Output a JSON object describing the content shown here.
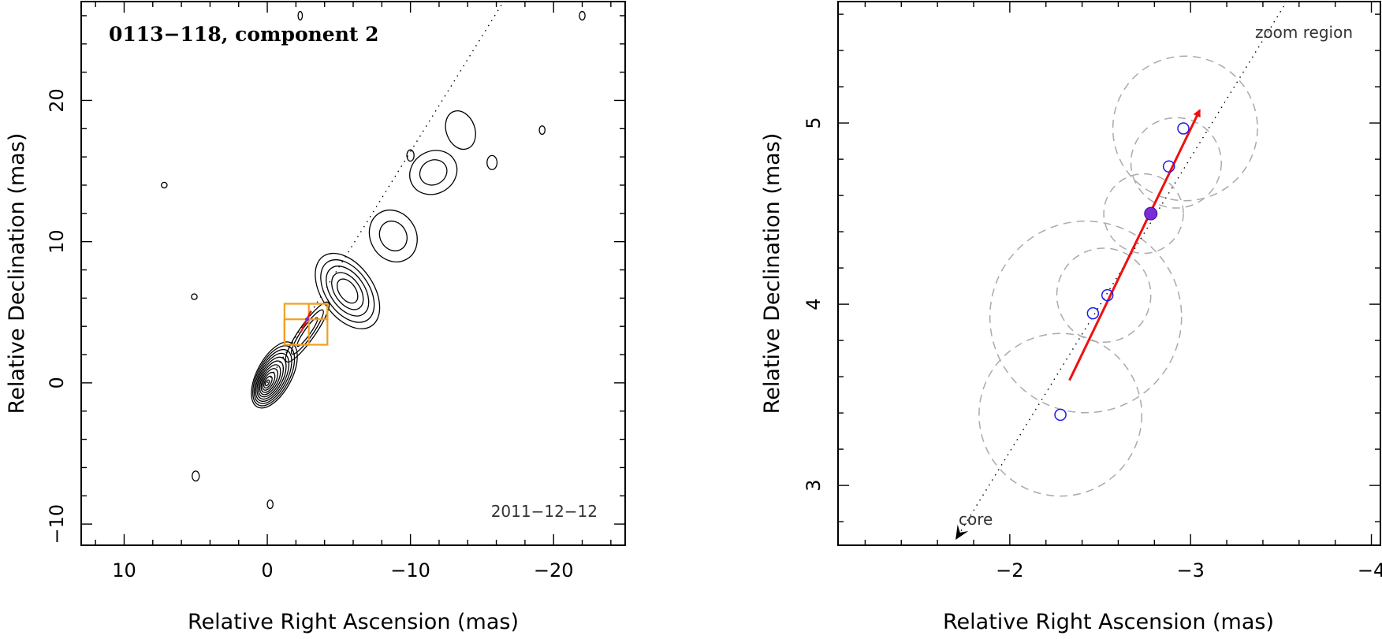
{
  "chart_data": [
    {
      "type": "contour",
      "title": "0113−118, component 2",
      "epoch": "2011−12−12",
      "xlabel": "Relative Right Ascension (mas)",
      "ylabel": "Relative Declination (mas)",
      "xlim": [
        13,
        -25
      ],
      "ylim": [
        -11.5,
        27
      ],
      "xticks": [
        10,
        0,
        -10,
        -20
      ],
      "xtick_labels": [
        "10",
        "0",
        "−10",
        "−20"
      ],
      "yticks": [
        -10,
        0,
        10,
        20
      ],
      "ytick_labels": [
        "−10",
        "0",
        "10",
        "20"
      ],
      "jet_axis": [
        [
          0,
          0
        ],
        [
          -16.5,
          27
        ]
      ],
      "core": {
        "x": 0,
        "y": 0,
        "levels": 11
      },
      "zoom_boxes": [
        {
          "x": [
            -1.2,
            -4.2
          ],
          "y": [
            2.7,
            5.6
          ]
        },
        {
          "x": [
            -1.2,
            -2.9
          ],
          "y": [
            2.7,
            4.5
          ]
        },
        {
          "x": [
            -2.9,
            -4.2
          ],
          "y": [
            4.5,
            5.6
          ]
        }
      ],
      "component_motion": {
        "from": [
          -2.35,
          3.6
        ],
        "to": [
          -3.05,
          5.1
        ]
      },
      "blobs": [
        {
          "x": -5.6,
          "y": 6.5,
          "rx": 1.8,
          "ry": 3.0,
          "rot": -35,
          "levels": 5
        },
        {
          "x": -8.8,
          "y": 10.4,
          "rx": 1.6,
          "ry": 1.9,
          "rot": -30,
          "levels": 2
        },
        {
          "x": -11.6,
          "y": 14.9,
          "rx": 1.7,
          "ry": 1.5,
          "rot": -30,
          "levels": 2
        },
        {
          "x": -13.5,
          "y": 17.9,
          "rx": 1.0,
          "ry": 1.4,
          "rot": -20,
          "levels": 1
        },
        {
          "x": -15.7,
          "y": 15.6,
          "rx": 0.35,
          "ry": 0.5,
          "rot": 0,
          "levels": 1
        },
        {
          "x": -19.2,
          "y": 17.9,
          "rx": 0.2,
          "ry": 0.3,
          "rot": 0,
          "levels": 1
        },
        {
          "x": -10.0,
          "y": 16.1,
          "rx": 0.25,
          "ry": 0.4,
          "rot": 0,
          "levels": 1
        },
        {
          "x": 5.0,
          "y": -6.6,
          "rx": 0.25,
          "ry": 0.35,
          "rot": 0,
          "levels": 1
        },
        {
          "x": -22.0,
          "y": 26.0,
          "rx": 0.2,
          "ry": 0.3,
          "rot": 0,
          "levels": 1
        },
        {
          "x": -2.3,
          "y": 26.0,
          "rx": 0.15,
          "ry": 0.3,
          "rot": 0,
          "levels": 1
        },
        {
          "x": 7.2,
          "y": 14.0,
          "rx": 0.2,
          "ry": 0.2,
          "rot": 0,
          "levels": 1
        },
        {
          "x": 5.1,
          "y": 6.1,
          "rx": 0.2,
          "ry": 0.2,
          "rot": 0,
          "levels": 1
        },
        {
          "x": -0.2,
          "y": -8.6,
          "rx": 0.2,
          "ry": 0.3,
          "rot": 0,
          "levels": 1
        }
      ]
    },
    {
      "type": "scatter",
      "title": "zoom region",
      "xlabel": "Relative Right Ascension (mas)",
      "ylabel": "Relative Declination (mas)",
      "xlim": [
        -1.05,
        -4.05
      ],
      "ylim": [
        2.67,
        5.67
      ],
      "xticks": [
        -2,
        -3,
        -4
      ],
      "xtick_labels": [
        "−2",
        "−3",
        "−4"
      ],
      "yticks": [
        3,
        4,
        5
      ],
      "ytick_labels": [
        "3",
        "4",
        "5"
      ],
      "core_direction": {
        "label": "core",
        "from": [
          -3.55,
          5.7
        ],
        "to": [
          -1.7,
          2.7
        ]
      },
      "points_open": [
        {
          "x": -2.28,
          "y": 3.39
        },
        {
          "x": -2.46,
          "y": 3.95
        },
        {
          "x": -2.54,
          "y": 4.05
        },
        {
          "x": -2.88,
          "y": 4.76
        },
        {
          "x": -2.96,
          "y": 4.97
        }
      ],
      "point_filled": {
        "x": -2.78,
        "y": 4.5
      },
      "uncertainty_circles": [
        {
          "x": -2.28,
          "y": 3.39,
          "r": 0.45
        },
        {
          "x": -2.42,
          "y": 3.93,
          "r": 0.53
        },
        {
          "x": -2.52,
          "y": 4.05,
          "r": 0.26
        },
        {
          "x": -2.74,
          "y": 4.5,
          "r": 0.22
        },
        {
          "x": -2.92,
          "y": 4.78,
          "r": 0.25
        },
        {
          "x": -2.97,
          "y": 4.97,
          "r": 0.4
        }
      ],
      "motion_vector": {
        "from": [
          -2.33,
          3.58
        ],
        "to": [
          -3.05,
          5.07
        ],
        "color": "#ee1111"
      }
    }
  ]
}
